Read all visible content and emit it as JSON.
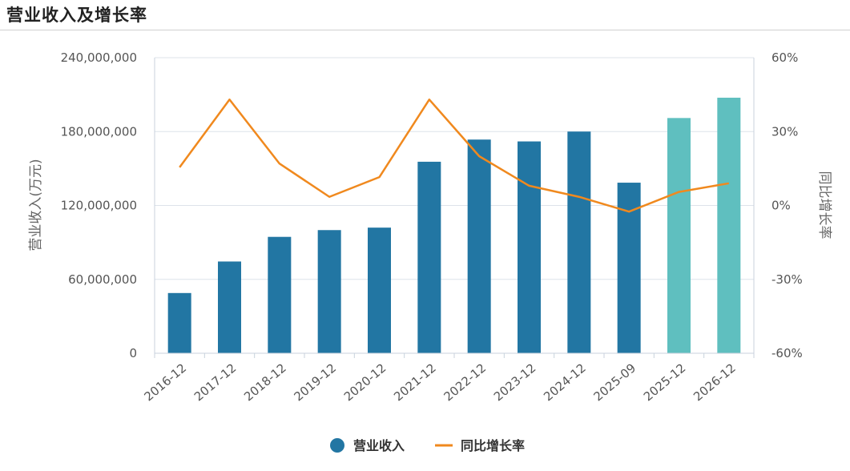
{
  "header": {
    "title": "营业收入及增长率"
  },
  "chart_data": {
    "type": "bar",
    "categories": [
      "2016-12",
      "2017-12",
      "2018-12",
      "2019-12",
      "2020-12",
      "2021-12",
      "2022-12",
      "2023-12",
      "2024-12",
      "2025-09",
      "2025-12",
      "2026-12"
    ],
    "series": [
      {
        "name": "营业收入",
        "type": "bar",
        "axis": "left",
        "color": "#2276a3",
        "forecast_color": "#5fbfbf",
        "values": [
          48900000,
          74500000,
          94500000,
          100000000,
          102000000,
          155500000,
          173500000,
          172000000,
          180000000,
          138500000,
          191000000,
          207500000
        ]
      },
      {
        "name": "同比增长率",
        "type": "line",
        "axis": "right",
        "color": "#f0891e",
        "values": [
          15.5,
          43,
          17,
          3.5,
          11.5,
          43,
          20,
          8,
          3.5,
          -2.5,
          5.5,
          9
        ]
      }
    ],
    "forecast_categories": [
      "2025-12",
      "2026-12"
    ],
    "ylabel": "营业收入(万元)",
    "y2label": "同比增长率",
    "ylim": [
      0,
      240000000
    ],
    "y2lim": [
      -60,
      60
    ],
    "yticks": [
      "0",
      "60,000,000",
      "120,000,000",
      "180,000,000",
      "240,000,000"
    ],
    "y2ticks": [
      "-60%",
      "-30%",
      "0%",
      "30%",
      "60%"
    ],
    "grid": true,
    "legend": "bottom-center"
  }
}
